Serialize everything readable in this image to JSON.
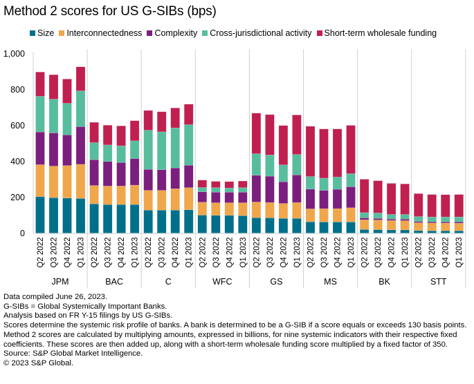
{
  "title": "Method 2 scores for US G-SIBs (bps)",
  "legend": [
    {
      "key": "size",
      "label": "Size",
      "color": "#006f8a"
    },
    {
      "key": "inter",
      "label": "Interconnectedness",
      "color": "#f0a64b"
    },
    {
      "key": "complex",
      "label": "Complexity",
      "color": "#7b1f7e"
    },
    {
      "key": "cross",
      "label": "Cross-jurisdictional activity",
      "color": "#57bd9e"
    },
    {
      "key": "stwf",
      "label": "Short-term wholesale funding",
      "color": "#c0204f"
    }
  ],
  "chart_data": {
    "type": "bar",
    "stacked": true,
    "title": "Method 2 scores for US G-SIBs (bps)",
    "xlabel": "",
    "ylabel": "",
    "ylim": [
      0,
      1000
    ],
    "yticks": [
      0,
      200,
      400,
      600,
      800,
      1000
    ],
    "ytick_labels": [
      "0",
      "200",
      "400",
      "600",
      "800",
      "1,000"
    ],
    "grid": false,
    "legend_position": "top",
    "groups": [
      "JPM",
      "BAC",
      "C",
      "WFC",
      "GS",
      "MS",
      "BK",
      "STT"
    ],
    "categories": [
      "Q2 2022",
      "Q3 2022",
      "Q4 2022",
      "Q1 2023"
    ],
    "series": [
      {
        "name": "Size",
        "color": "#006f8a",
        "values": [
          [
            203,
            197,
            195,
            193
          ],
          [
            163,
            159,
            159,
            159
          ],
          [
            128,
            128,
            128,
            130
          ],
          [
            100,
            99,
            99,
            97
          ],
          [
            86,
            85,
            82,
            82
          ],
          [
            63,
            62,
            62,
            62
          ],
          [
            20,
            19,
            18,
            18
          ],
          [
            14,
            13,
            13,
            13
          ]
        ]
      },
      {
        "name": "Interconnectedness",
        "color": "#f0a64b",
        "values": [
          [
            178,
            176,
            181,
            190
          ],
          [
            102,
            103,
            103,
            108
          ],
          [
            110,
            110,
            119,
            123
          ],
          [
            72,
            70,
            70,
            72
          ],
          [
            87,
            85,
            83,
            88
          ],
          [
            72,
            74,
            74,
            79
          ],
          [
            54,
            54,
            52,
            51
          ],
          [
            44,
            43,
            43,
            42
          ]
        ]
      },
      {
        "name": "Complexity",
        "color": "#7b1f7e",
        "values": [
          [
            182,
            185,
            171,
            210
          ],
          [
            144,
            137,
            131,
            148
          ],
          [
            117,
            115,
            116,
            125
          ],
          [
            58,
            59,
            59,
            59
          ],
          [
            149,
            147,
            121,
            154
          ],
          [
            110,
            102,
            108,
            117
          ],
          [
            11,
            9,
            8,
            9
          ],
          [
            7,
            7,
            7,
            8
          ]
        ]
      },
      {
        "name": "Cross-jurisdictional activity",
        "color": "#57bd9e",
        "values": [
          [
            199,
            188,
            176,
            199
          ],
          [
            95,
            92,
            93,
            99
          ],
          [
            218,
            211,
            223,
            226
          ],
          [
            24,
            25,
            23,
            25
          ],
          [
            120,
            118,
            94,
            114
          ],
          [
            70,
            68,
            68,
            73
          ],
          [
            29,
            30,
            26,
            26
          ],
          [
            27,
            27,
            27,
            27
          ]
        ]
      },
      {
        "name": "Short-term wholesale funding",
        "color": "#c0204f",
        "values": [
          [
            135,
            136,
            135,
            134
          ],
          [
            113,
            110,
            111,
            112
          ],
          [
            110,
            112,
            111,
            114
          ],
          [
            41,
            35,
            36,
            37
          ],
          [
            226,
            225,
            219,
            220
          ],
          [
            280,
            274,
            268,
            269
          ],
          [
            186,
            180,
            173,
            170
          ],
          [
            128,
            125,
            124,
            125
          ]
        ]
      }
    ]
  },
  "notes": [
    "Data compiled June 26, 2023.",
    "G-SIBs = Global Systemically Important Banks.",
    "Analysis based on FR Y-15 filings by US G-SIBs.",
    "Scores determine the systemic risk profile of banks. A bank is determined to be a G-SIB if a score equals or exceeds 130 basis points. Method 2 scores are calculated by multiplying amounts, expressed in billions, for nine systemic indicators with their respective fixed coefficients. These scores are then added up, along with a short-term wholesale funding score multiplied by a fixed factor of 350.",
    "Source: S&P Global Market Intelligence.",
    "© 2023 S&P Global."
  ]
}
